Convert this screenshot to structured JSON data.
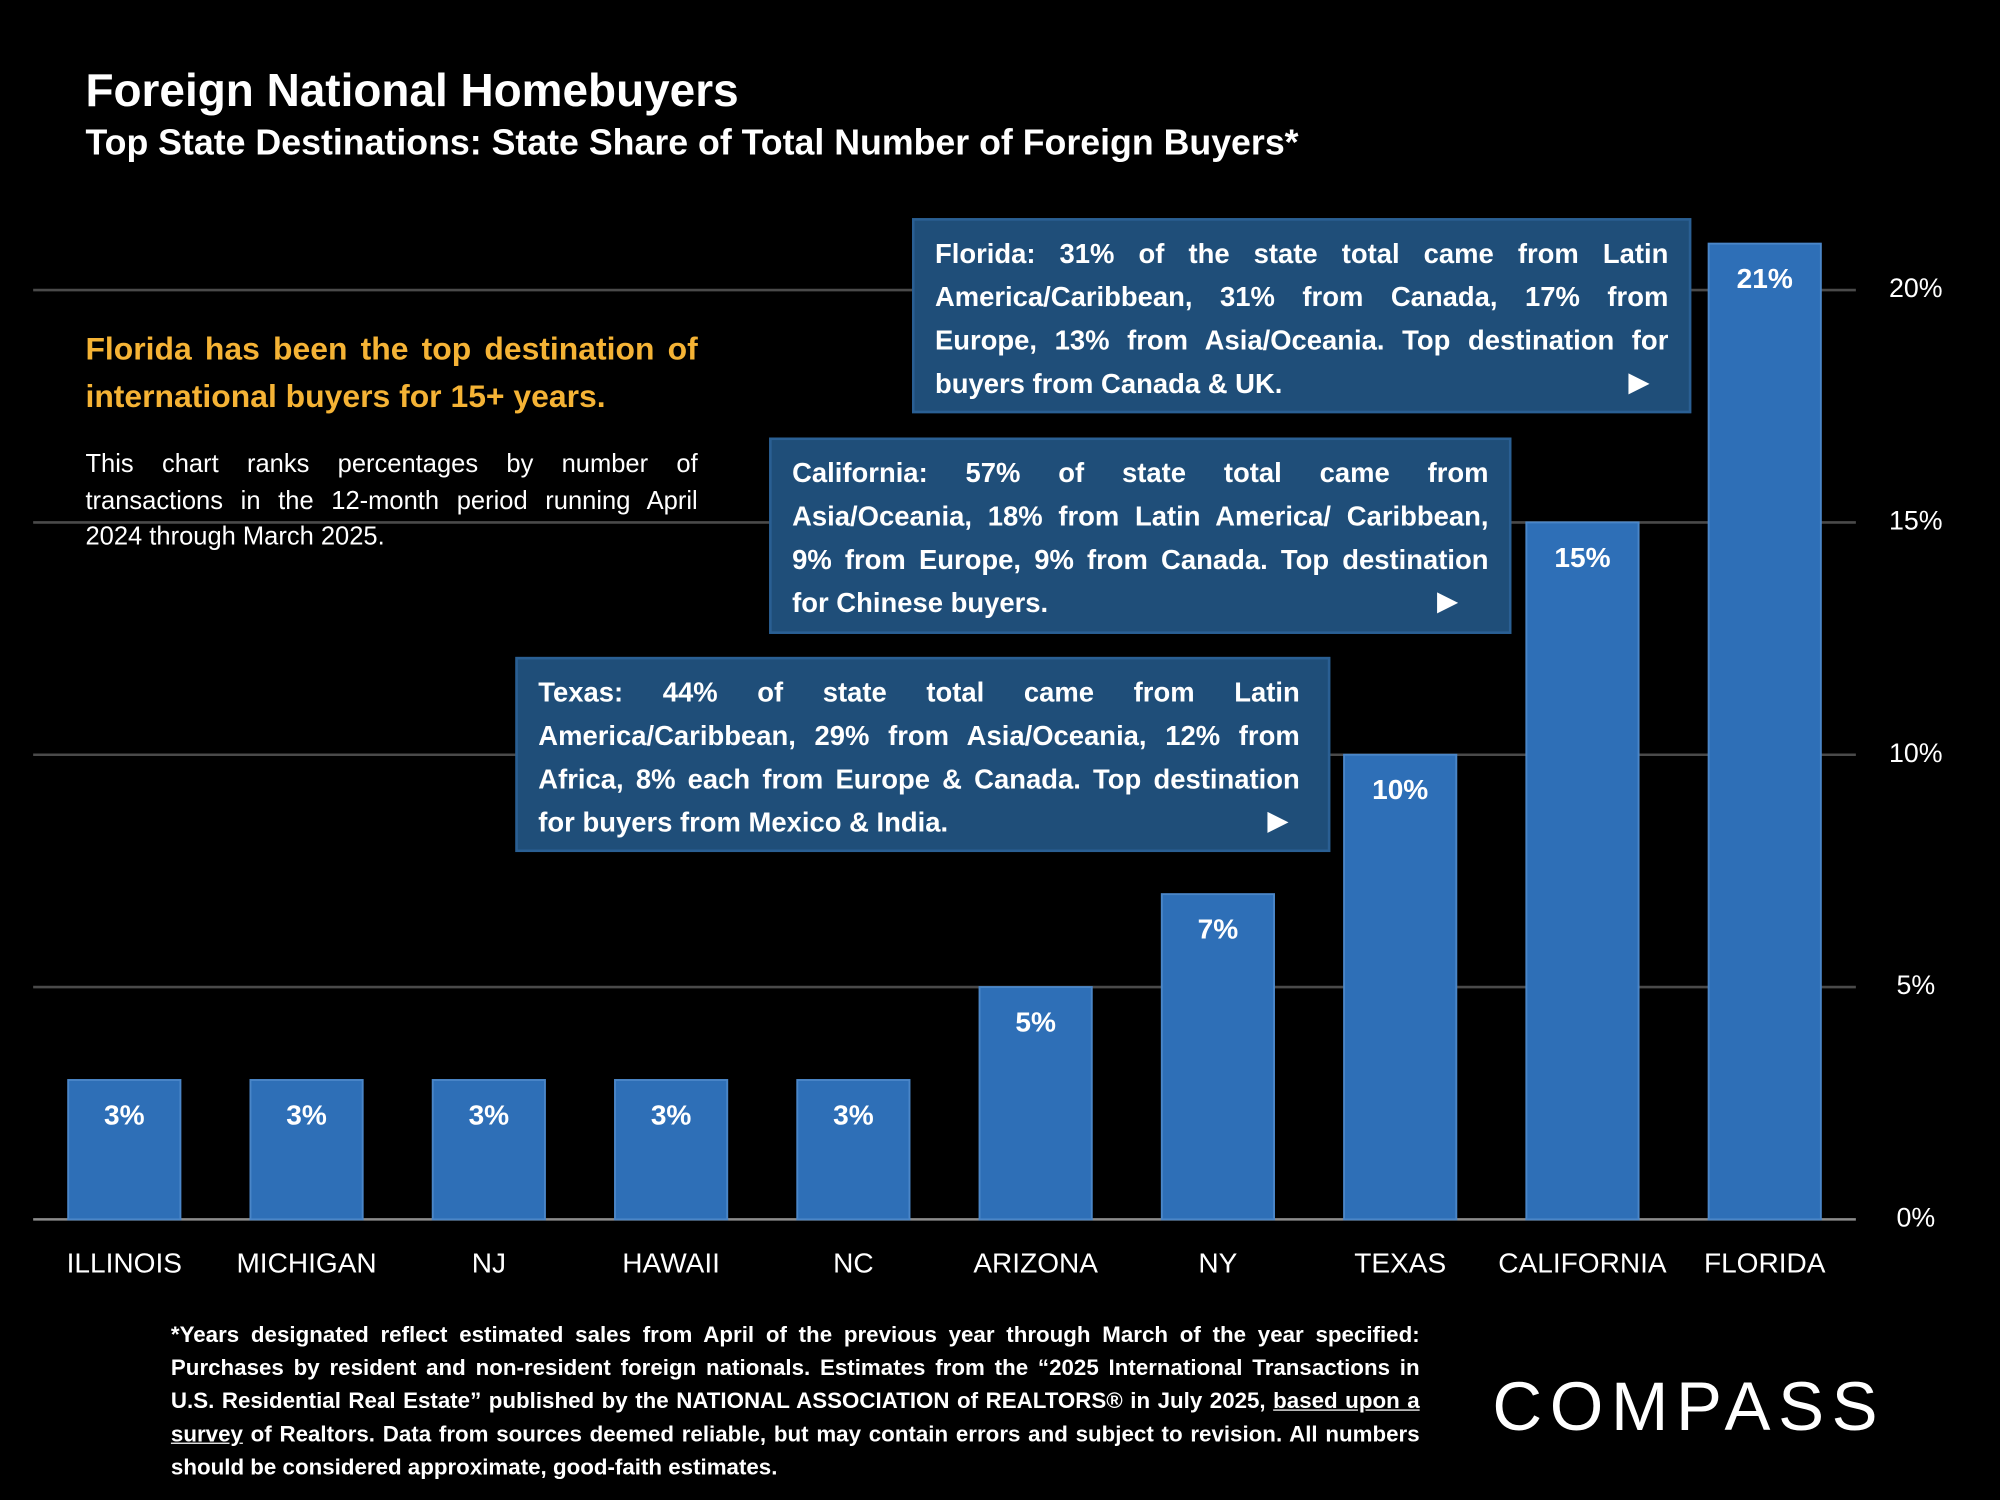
{
  "title": "Foreign National Homebuyers",
  "subtitle": "Top State Destinations: State Share of Total Number of Foreign Buyers*",
  "callout": {
    "headline": "Florida has been the top destination of international buyers for 15+ years.",
    "text": "This chart ranks percentages by number of transactions in the 12-month period running April 2024 through March 2025."
  },
  "annotations": [
    {
      "text": "Florida: 31% of the state total came from Latin America/Caribbean, 31% from Canada, 17% from Europe, 13% from Asia/Oceania. Top destination for buyers from Canada & UK."
    },
    {
      "text": "California: 57% of state total came from Asia/Oceania, 18% from Latin America/ Caribbean, 9% from Europe, 9% from Canada. Top destination for Chinese buyers."
    },
    {
      "text": "Texas: 44% of state total came from Latin America/Caribbean, 29% from Asia/Oceania, 12% from Africa, 8% each from Europe & Canada. Top destination for buyers from Mexico & India."
    }
  ],
  "chart_data": {
    "type": "bar",
    "categories": [
      "ILLINOIS",
      "MICHIGAN",
      "NJ",
      "HAWAII",
      "NC",
      "ARIZONA",
      "NY",
      "TEXAS",
      "CALIFORNIA",
      "FLORIDA"
    ],
    "values": [
      3,
      3,
      3,
      3,
      3,
      5,
      7,
      10,
      15,
      21
    ],
    "value_labels": [
      "3%",
      "3%",
      "3%",
      "3%",
      "3%",
      "5%",
      "7%",
      "10%",
      "15%",
      "21%"
    ],
    "color": "#2e6fb7",
    "ylim": [
      0,
      21
    ],
    "yticks": [
      {
        "value": 0,
        "label": "0%"
      },
      {
        "value": 5,
        "label": "5%"
      },
      {
        "value": 10,
        "label": "10%"
      },
      {
        "value": 15,
        "label": "15%"
      },
      {
        "value": 20,
        "label": "20%"
      }
    ],
    "grid": true
  },
  "footnote": {
    "before": "*Years designated reflect estimated sales from April of the previous year through March of the year specified: Purchases by resident and non-resident foreign nationals. Estimates from the “2025 International Transactions in U.S. Residential Real Estate” published by the NATIONAL ASSOCIATION of REALTORS® in July 2025, ",
    "link": "based upon a survey",
    "after": " of Realtors. Data from sources deemed reliable, but may contain errors and subject to revision.  All numbers should be considered approximate, good-faith estimates."
  },
  "logo": "COMPASS"
}
